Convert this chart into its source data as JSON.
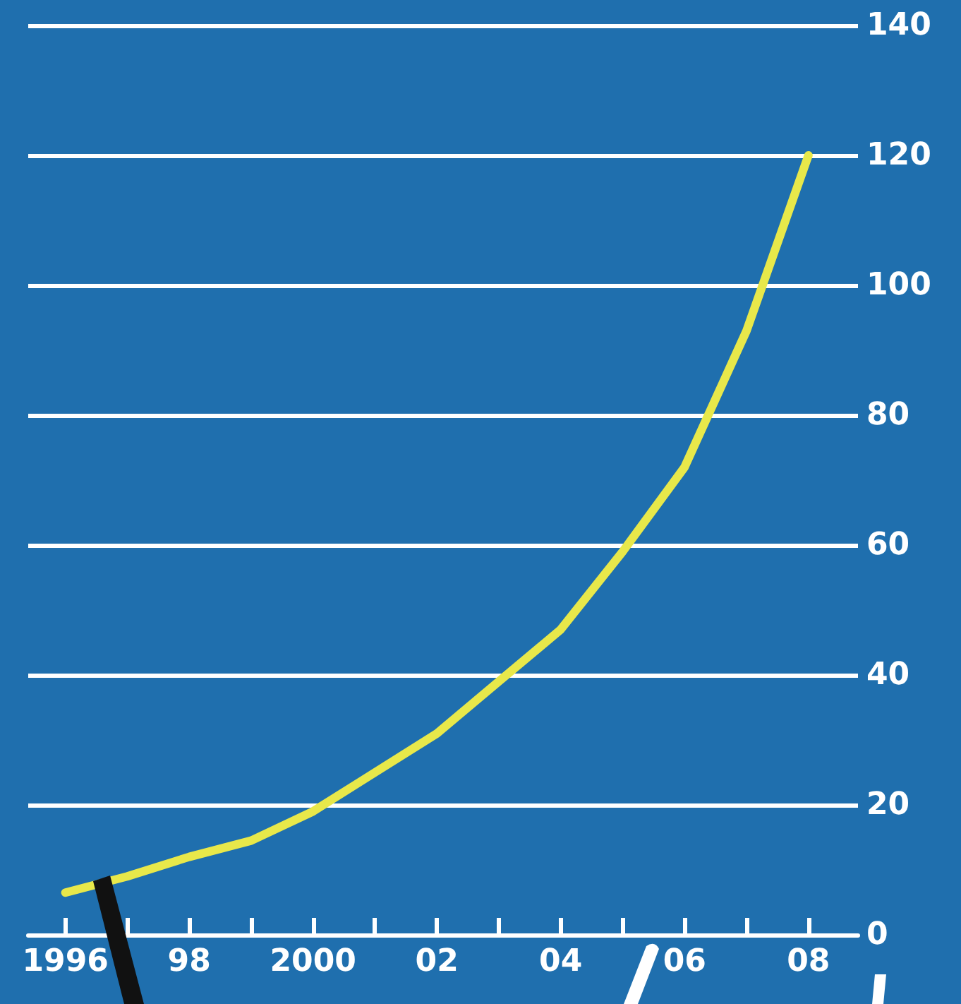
{
  "chart_data": {
    "type": "line",
    "x": [
      1996,
      1997,
      1998,
      1999,
      2000,
      2001,
      2002,
      2003,
      2004,
      2005,
      2006,
      2007,
      2008
    ],
    "series": [
      {
        "color": "#e8e84a",
        "values": [
          6.5,
          9,
          12,
          14.5,
          19,
          25,
          31,
          39,
          47,
          59,
          72,
          93,
          120
        ]
      }
    ],
    "xlim": [
      1995.4,
      2008.8
    ],
    "xticks": [
      {
        "value": 1996,
        "label": "1996"
      },
      {
        "value": 1997,
        "label": null
      },
      {
        "value": 1998,
        "label": "98"
      },
      {
        "value": 1999,
        "label": null
      },
      {
        "value": 2000,
        "label": "2000"
      },
      {
        "value": 2001,
        "label": null
      },
      {
        "value": 2002,
        "label": "02"
      },
      {
        "value": 2003,
        "label": null
      },
      {
        "value": 2004,
        "label": "04"
      },
      {
        "value": 2005,
        "label": null
      },
      {
        "value": 2006,
        "label": "06"
      },
      {
        "value": 2007,
        "label": null
      },
      {
        "value": 2008,
        "label": "08"
      }
    ],
    "ylim": [
      0,
      140
    ],
    "yticks": [
      0,
      20,
      40,
      60,
      80,
      100,
      120,
      140
    ],
    "grid": "y",
    "marker": "none",
    "line_style": "solid"
  }
}
